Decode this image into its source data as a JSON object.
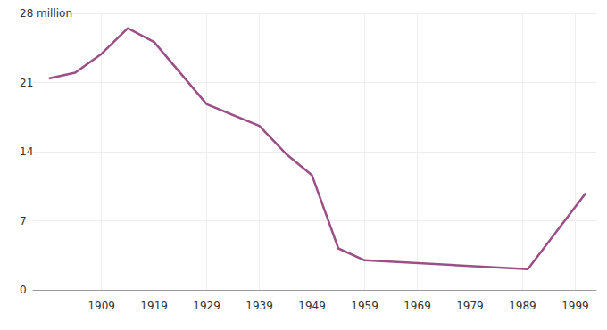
{
  "chart_data": {
    "type": "line",
    "x": [
      1899,
      1904,
      1909,
      1914,
      1919,
      1929,
      1939,
      1944,
      1949,
      1954,
      1959,
      1990,
      2001
    ],
    "values": [
      21.4,
      22.0,
      23.9,
      26.5,
      25.1,
      18.8,
      16.6,
      13.8,
      11.6,
      4.2,
      3.0,
      2.1,
      9.8
    ],
    "color": "#9b4f86",
    "xlim": [
      1896,
      2003
    ],
    "xticks": [
      1909,
      1919,
      1929,
      1939,
      1949,
      1959,
      1969,
      1979,
      1989,
      1999
    ],
    "ylim": [
      0,
      28
    ],
    "yticks": [
      0,
      7,
      14,
      21,
      {
        "value": 28,
        "label": "28 million"
      }
    ],
    "grid": true
  }
}
